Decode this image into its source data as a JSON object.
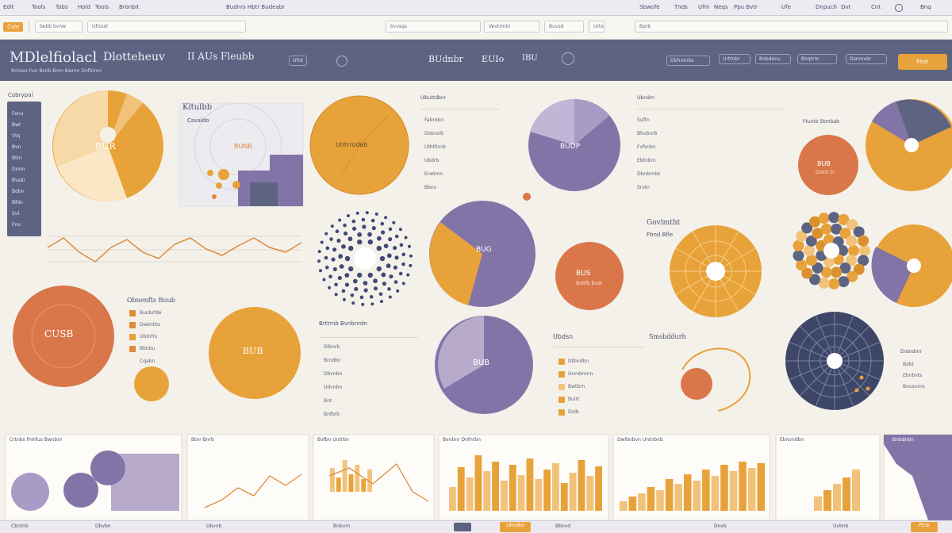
{
  "topbar": {
    "items": [
      "Edit",
      "Tools",
      "Tabs",
      "Hold",
      "Tools",
      "Bronbit"
    ],
    "center": "Budnrs  Hbtr  Budeabr",
    "right": [
      "Sbwofe",
      "Tnds",
      "Ufm",
      "Neqs",
      "Ppu Bvtr",
      "Ufe",
      "Dnpuch",
      "Dvt",
      "Cnt",
      "Bnq"
    ]
  },
  "toolbar": {
    "tab_label": "Cvle",
    "fields": [
      "bebb  bvnw",
      "Ufroulr",
      "bvvsqs",
      "Vevtrmtn",
      "Buvsd",
      "Urte",
      "Bprb"
    ]
  },
  "header": {
    "title": "MDlelfiolacl",
    "title2": "Dlotteheuv",
    "title3": "II  AUs Fleubb",
    "subtitle": "Rntoes  Fun  Bsnb  Bnm  Bwmn  Dnfblmn",
    "pill1": "Ufrd",
    "center1": "BUdnbr",
    "center2": "EUIo",
    "center3": "IBU",
    "right_pills": [
      "Dlrhntnbs",
      "Urttnbr",
      "Bnbdonu",
      "Bnqtrm",
      "Dsnmvbr"
    ],
    "action_button": "Fbdr"
  },
  "sidebar": {
    "title": "Cobrypal",
    "items": [
      "Fonu",
      "Bwt",
      "Vtq",
      "Bvn",
      "Btrn",
      "Drem",
      "Bvsdr",
      "Bobv",
      "Bfdn",
      "Svt",
      "Fno"
    ]
  },
  "panels": {
    "pie1_label": "BUR",
    "rect_title": "Kltulbb",
    "rect_sub": "Csvaldo",
    "rect_center": "BUNB",
    "pie2_label": "Untrrodeb",
    "list1_title": "Ulbuttdbnr",
    "list1_items": [
      "Fabrobn",
      "Dobrsrb",
      "Uthtfnrdr",
      "Ubdrb",
      "Erwtmn",
      "Bbns"
    ],
    "pie3_label": "BUDP",
    "list2_title": "Ubndrn",
    "list2_items": [
      "Suftn",
      "Bhvbnrb",
      "Fvfsnbn",
      "Ebtnbrn",
      "Dbnbrnbs",
      "Srvtn"
    ],
    "pie4_label": "BUB",
    "pie4_label_small": "Dolrb Sr",
    "pie5_title": "Ftumb Sbmbab",
    "ribbon_title": "Govlmtht",
    "ribbon_sub": "Fbnd Bfle",
    "bigpie_label": "BUG",
    "pie6_label": "BUS",
    "pie6_sub": "Bobfb Bvdr",
    "orange_pie_label": "CUSB",
    "legend_title": "Obnenfts  Buub",
    "legend_items": [
      "Bunbrfde",
      "Dwkntbs",
      "Ubtnfrs",
      "Bbnbu",
      "Cqabn"
    ],
    "pie7_label": "BUB",
    "list3_title": "Brttrnb  Bvnbnrdn",
    "list3_items": [
      "Dlbnrb",
      "Brndbn",
      "Dbvnbn",
      "Udvnbn",
      "Bnt",
      "Bnfbrb"
    ],
    "pie8_label": "BUB",
    "list4_title": "Ubdsn",
    "list4_items": [
      "Dtbndbn",
      "Unmbnmn",
      "Bwtbrn",
      "Bulrt",
      "Dvlb"
    ],
    "arc_title": "Smsbddurh",
    "right_list_title": "Dnbrdrnr",
    "right_list_items": [
      "Bobt",
      "Ebnbvts",
      "Bnusvnrs"
    ]
  },
  "bottom_panels": [
    {
      "title": "Crtnbs  Pnhfus  Bwnbnr"
    },
    {
      "title": "Btnr  Bnrb"
    },
    {
      "title": "Bvfbn  Untrbn"
    },
    {
      "title": "Bvnbnr  Dnfnrbn"
    },
    {
      "title": "Dwlbnbvn  Untnbnb"
    },
    {
      "title": "Ebnvndbn"
    },
    {
      "title": "Bnbdnbn"
    }
  ],
  "bottom_bar": {
    "items": [
      "Cbntnb",
      "Dbvbn",
      "Ubvnb",
      "Bnbvrn",
      "Bbnvd",
      "Dnvb",
      "Uvbnb"
    ],
    "active": "Ubndbn",
    "button": "Ptnb"
  },
  "colors": {
    "navy": "#5d6482",
    "orange": "#e8a23a",
    "purple": "#8374a8",
    "lavender": "#b8aacb",
    "coral": "#d9774a",
    "cream": "#f4f1ea"
  }
}
